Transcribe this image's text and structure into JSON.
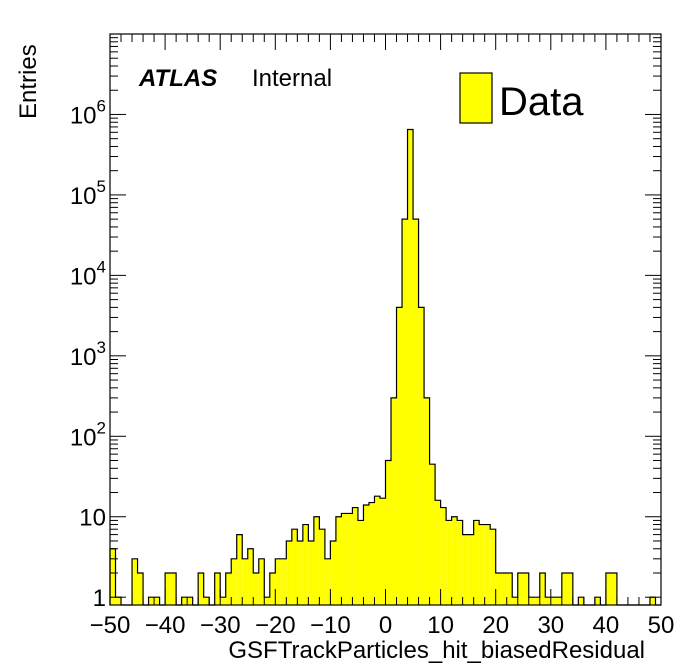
{
  "labels": {
    "atlas": "ATLAS",
    "internal": "Internal"
  },
  "chart_data": {
    "type": "bar",
    "xlabel": "GSFTrackParticles_hit_biasedResidual",
    "ylabel": "Entries",
    "xlim": [
      -50,
      50
    ],
    "ylim": [
      0.8,
      10000000
    ],
    "log_y": true,
    "grid": false,
    "legend_position": "top-right",
    "fill_color": "#ffff00",
    "edge_color": "#000000",
    "x_ticks": [
      "−50",
      "−40",
      "−30",
      "−20",
      "−10",
      "0",
      "10",
      "20",
      "30",
      "40",
      "50"
    ],
    "x_tick_values": [
      -50,
      -40,
      -30,
      -20,
      -10,
      0,
      10,
      20,
      30,
      40,
      50
    ],
    "y_ticks": [
      {
        "value": 1,
        "base": "1",
        "exp": ""
      },
      {
        "value": 10,
        "base": "10",
        "exp": ""
      },
      {
        "value": 100,
        "base": "10",
        "exp": "2"
      },
      {
        "value": 1000,
        "base": "10",
        "exp": "3"
      },
      {
        "value": 10000,
        "base": "10",
        "exp": "4"
      },
      {
        "value": 100000,
        "base": "10",
        "exp": "5"
      },
      {
        "value": 1000000,
        "base": "10",
        "exp": "6"
      }
    ],
    "series": [
      {
        "name": "Data",
        "bin_edges": [
          -50,
          -49,
          -48,
          -47,
          -46,
          -45,
          -44,
          -43,
          -42,
          -41,
          -40,
          -39,
          -38,
          -37,
          -36,
          -35,
          -34,
          -33,
          -32,
          -31,
          -30,
          -29,
          -28,
          -27,
          -26,
          -25,
          -24,
          -23,
          -22,
          -21,
          -20,
          -19,
          -18,
          -17,
          -16,
          -15,
          -14,
          -13,
          -12,
          -11,
          -10,
          -9,
          -8,
          -7,
          -6,
          -5,
          -4,
          -3,
          -2,
          -1,
          0,
          1,
          2,
          3,
          4,
          5,
          6,
          7,
          8,
          9,
          10,
          11,
          12,
          13,
          14,
          15,
          16,
          17,
          18,
          19,
          20,
          21,
          22,
          23,
          24,
          25,
          26,
          27,
          28,
          29,
          30,
          31,
          32,
          33,
          34,
          35,
          36,
          37,
          38,
          39,
          40,
          41,
          42,
          43,
          44,
          45,
          46,
          47,
          48,
          49,
          50
        ],
        "values": [
          4,
          1,
          0,
          0,
          3,
          2,
          0,
          1,
          1,
          0,
          2,
          2,
          0,
          1,
          1,
          0,
          2,
          1,
          0,
          2,
          1,
          2,
          3,
          6,
          3,
          4,
          2,
          3,
          1,
          2,
          3,
          3,
          5,
          7,
          5,
          8,
          5,
          10,
          7,
          3,
          5,
          10,
          11,
          11,
          13,
          9,
          14,
          15,
          18,
          17,
          50,
          300,
          4000,
          50000,
          650000,
          50000,
          4000,
          300,
          45,
          16,
          13,
          9,
          10,
          9,
          6,
          6,
          9,
          8,
          8,
          7,
          2,
          2,
          2,
          1,
          2,
          2,
          1,
          1,
          2,
          1,
          1,
          1,
          2,
          2,
          0,
          1,
          0,
          0,
          1,
          0,
          2,
          2,
          0,
          0,
          0,
          0,
          0,
          0,
          1,
          0
        ]
      }
    ]
  }
}
